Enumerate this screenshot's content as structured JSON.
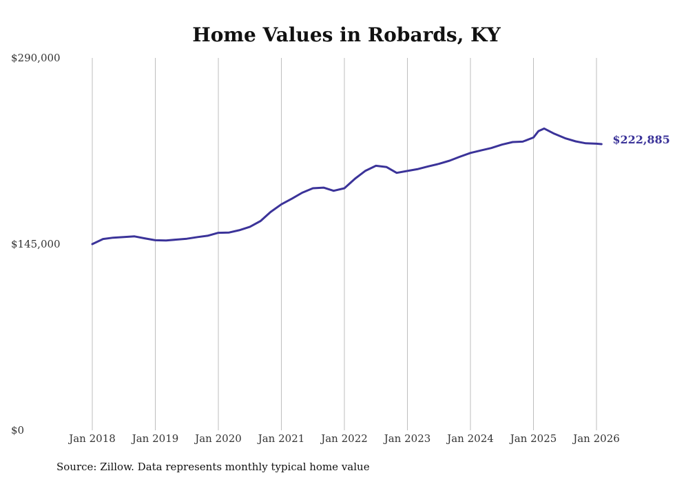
{
  "chart_data": {
    "type": "line",
    "title": "Home Values in Robards, KY",
    "xlabel": "",
    "ylabel": "",
    "ylim": [
      0,
      290000
    ],
    "y_ticks": [
      0,
      145000,
      290000
    ],
    "y_tick_labels": [
      "$0",
      "$145,000",
      "$290,000"
    ],
    "x_ticks": [
      2018.0,
      2019.0,
      2020.0,
      2021.0,
      2022.0,
      2023.0,
      2024.0,
      2025.0,
      2026.0
    ],
    "x_tick_labels": [
      "Jan 2018",
      "Jan 2019",
      "Jan 2020",
      "Jan 2021",
      "Jan 2022",
      "Jan 2023",
      "Jan 2024",
      "Jan 2025",
      "Jan 2026"
    ],
    "grid": "vertical",
    "line_color": "#3b3399",
    "end_label": "$222,885",
    "series": [
      {
        "name": "Typical home value",
        "points": [
          [
            2018.0,
            145000
          ],
          [
            2018.17,
            149000
          ],
          [
            2018.33,
            150000
          ],
          [
            2018.5,
            150500
          ],
          [
            2018.67,
            151000
          ],
          [
            2018.83,
            149500
          ],
          [
            2019.0,
            148000
          ],
          [
            2019.17,
            147800
          ],
          [
            2019.33,
            148500
          ],
          [
            2019.5,
            149200
          ],
          [
            2019.67,
            150500
          ],
          [
            2019.83,
            151500
          ],
          [
            2020.0,
            153800
          ],
          [
            2020.17,
            154000
          ],
          [
            2020.33,
            155800
          ],
          [
            2020.5,
            158500
          ],
          [
            2020.67,
            163000
          ],
          [
            2020.83,
            170000
          ],
          [
            2021.0,
            176000
          ],
          [
            2021.17,
            180500
          ],
          [
            2021.33,
            185000
          ],
          [
            2021.5,
            188500
          ],
          [
            2021.67,
            189000
          ],
          [
            2021.83,
            186500
          ],
          [
            2022.0,
            188500
          ],
          [
            2022.17,
            196000
          ],
          [
            2022.33,
            202000
          ],
          [
            2022.5,
            206000
          ],
          [
            2022.67,
            205000
          ],
          [
            2022.83,
            200500
          ],
          [
            2023.0,
            202000
          ],
          [
            2023.17,
            203500
          ],
          [
            2023.33,
            205500
          ],
          [
            2023.5,
            207500
          ],
          [
            2023.67,
            210000
          ],
          [
            2023.83,
            213000
          ],
          [
            2024.0,
            216000
          ],
          [
            2024.17,
            218000
          ],
          [
            2024.33,
            219800
          ],
          [
            2024.5,
            222500
          ],
          [
            2024.67,
            224500
          ],
          [
            2024.83,
            224800
          ],
          [
            2025.0,
            228000
          ],
          [
            2025.08,
            233000
          ],
          [
            2025.17,
            235000
          ],
          [
            2025.33,
            231000
          ],
          [
            2025.5,
            227500
          ],
          [
            2025.67,
            225000
          ],
          [
            2025.83,
            223500
          ],
          [
            2026.0,
            223200
          ],
          [
            2026.08,
            222885
          ]
        ]
      }
    ]
  },
  "footer": {
    "source": "Source: Zillow. Data represents monthly typical home value"
  }
}
